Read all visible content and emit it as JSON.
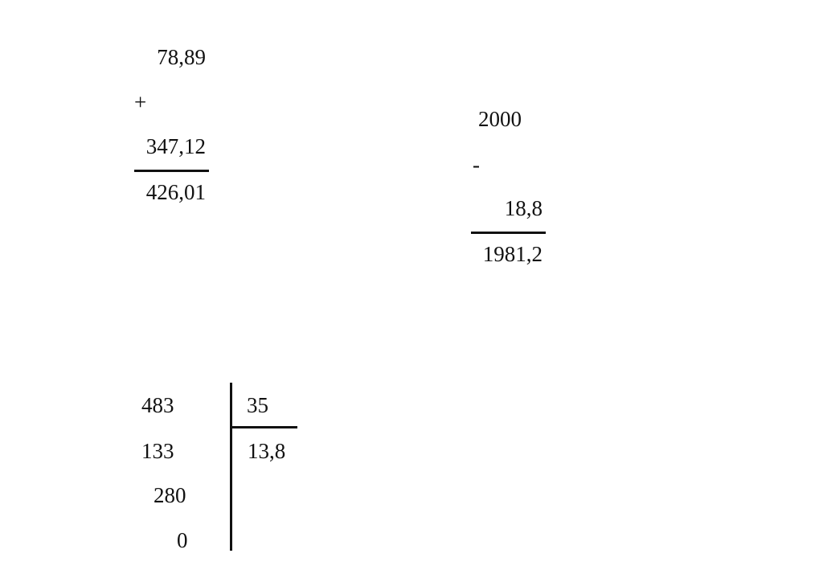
{
  "addition": {
    "operand1": "78,89",
    "operator": "+",
    "operand2": "347,12",
    "result": "426,01"
  },
  "subtraction": {
    "operand1": "2000",
    "operator": "-",
    "operand2": "18,8",
    "result": "1981,2"
  },
  "division": {
    "dividend": "483",
    "divisor": "35",
    "quotient": "13,8",
    "steps": [
      "133",
      "280",
      "0"
    ]
  }
}
